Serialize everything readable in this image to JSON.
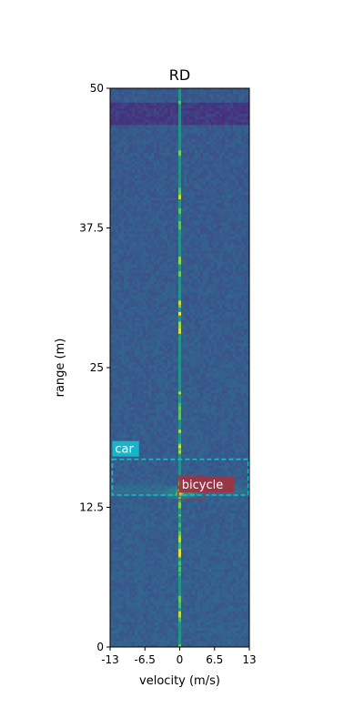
{
  "chart_data": {
    "type": "heatmap",
    "title": "RD",
    "xlabel": "velocity (m/s)",
    "ylabel": "range (m)",
    "xlim": [
      -13,
      13
    ],
    "ylim": [
      0,
      50
    ],
    "x_ticks": [
      {
        "value": -13,
        "label": "-13"
      },
      {
        "value": -6.5,
        "label": "-6.5"
      },
      {
        "value": 0,
        "label": "0"
      },
      {
        "value": 6.5,
        "label": "6.5"
      },
      {
        "value": 13,
        "label": "13"
      }
    ],
    "y_ticks": [
      {
        "value": 0,
        "label": "0"
      },
      {
        "value": 12.5,
        "label": "12.5"
      },
      {
        "value": 25,
        "label": "25"
      },
      {
        "value": 37.5,
        "label": "37.5"
      },
      {
        "value": 50,
        "label": "50"
      }
    ],
    "colormap": "viridis",
    "features": {
      "zero_velocity_line": {
        "velocity": 0
      },
      "dark_band_range": [
        46.8,
        48.8
      ],
      "targets": [
        {
          "range": 13.8,
          "velocity": 0.0
        },
        {
          "range": 14.0,
          "velocity": 2.0
        }
      ]
    },
    "annotations": [
      {
        "label": "car",
        "v_min": -12.6,
        "v_max": 12.8,
        "r_min": 13.6,
        "r_max": 16.8,
        "color": "#17becf",
        "style": "dashed"
      },
      {
        "label": "bicycle",
        "v_min": -0.3,
        "v_max": 4.7,
        "r_min": 13.2,
        "r_max": 15.3,
        "color": "#a3313f",
        "style": "dashed"
      }
    ]
  }
}
